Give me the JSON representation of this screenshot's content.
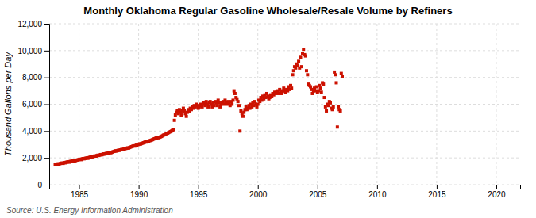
{
  "chart_data": {
    "type": "scatter",
    "title": "Monthly Oklahoma Regular Gasoline Wholesale/Resale Volume by Refiners",
    "y_label": "Thousand Gallons per Day",
    "annotations": [
      "Source: U.S. Energy Information Administration"
    ],
    "color": "#CC1100",
    "marker": "square",
    "grid": true,
    "xlim": [
      1982.5,
      2022
    ],
    "ylim": [
      0,
      12000
    ],
    "xticks": [
      1985,
      1990,
      1995,
      2000,
      2005,
      2010,
      2015,
      2020
    ],
    "yticks": [
      0,
      {
        "value": 2000,
        "label": "2,000"
      },
      {
        "value": 4000,
        "label": "4,000"
      },
      {
        "value": 6000,
        "label": "6,000"
      },
      {
        "value": 8000,
        "label": "8,000"
      },
      {
        "value": 10000,
        "label": "10,000"
      },
      {
        "value": 12000,
        "label": "12,000"
      }
    ],
    "x": [
      1983.0,
      1983.08,
      1983.17,
      1983.25,
      1983.33,
      1983.42,
      1983.5,
      1983.58,
      1983.67,
      1983.75,
      1983.83,
      1983.92,
      1984.0,
      1984.08,
      1984.17,
      1984.25,
      1984.33,
      1984.42,
      1984.5,
      1984.58,
      1984.67,
      1984.75,
      1984.83,
      1984.92,
      1985.0,
      1985.08,
      1985.17,
      1985.25,
      1985.33,
      1985.42,
      1985.5,
      1985.58,
      1985.67,
      1985.75,
      1985.83,
      1985.92,
      1986.0,
      1986.08,
      1986.17,
      1986.25,
      1986.33,
      1986.42,
      1986.5,
      1986.58,
      1986.67,
      1986.75,
      1986.83,
      1986.92,
      1987.0,
      1987.08,
      1987.17,
      1987.25,
      1987.33,
      1987.42,
      1987.5,
      1987.58,
      1987.67,
      1987.75,
      1987.83,
      1987.92,
      1988.0,
      1988.08,
      1988.17,
      1988.25,
      1988.33,
      1988.42,
      1988.5,
      1988.58,
      1988.67,
      1988.75,
      1988.83,
      1988.92,
      1989.0,
      1989.08,
      1989.17,
      1989.25,
      1989.33,
      1989.42,
      1989.5,
      1989.58,
      1989.67,
      1989.75,
      1989.83,
      1989.92,
      1990.0,
      1990.08,
      1990.17,
      1990.25,
      1990.33,
      1990.42,
      1990.5,
      1990.58,
      1990.67,
      1990.75,
      1990.83,
      1990.92,
      1991.0,
      1991.08,
      1991.17,
      1991.25,
      1991.33,
      1991.42,
      1991.5,
      1991.58,
      1991.67,
      1991.75,
      1991.83,
      1991.92,
      1992.0,
      1992.08,
      1992.17,
      1992.25,
      1992.33,
      1992.42,
      1992.5,
      1992.58,
      1992.67,
      1992.75,
      1992.83,
      1992.92,
      1993.0,
      1993.08,
      1993.17,
      1993.25,
      1993.33,
      1993.42,
      1993.5,
      1993.58,
      1993.67,
      1993.75,
      1993.83,
      1993.92,
      1994.0,
      1994.08,
      1994.17,
      1994.25,
      1994.33,
      1994.42,
      1994.5,
      1994.58,
      1994.67,
      1994.75,
      1994.83,
      1994.92,
      1995.0,
      1995.08,
      1995.17,
      1995.25,
      1995.33,
      1995.42,
      1995.5,
      1995.58,
      1995.67,
      1995.75,
      1995.83,
      1995.92,
      1996.0,
      1996.08,
      1996.17,
      1996.25,
      1996.33,
      1996.42,
      1996.5,
      1996.58,
      1996.67,
      1996.75,
      1996.83,
      1996.92,
      1997.0,
      1997.08,
      1997.17,
      1997.25,
      1997.33,
      1997.42,
      1997.5,
      1997.58,
      1997.67,
      1997.75,
      1997.83,
      1997.92,
      1998.0,
      1998.08,
      1998.17,
      1998.25,
      1998.33,
      1998.42,
      1998.5,
      1998.58,
      1998.67,
      1998.75,
      1998.83,
      1998.92,
      1999.0,
      1999.08,
      1999.17,
      1999.25,
      1999.33,
      1999.42,
      1999.5,
      1999.58,
      1999.67,
      1999.75,
      1999.83,
      1999.92,
      2000.0,
      2000.08,
      2000.17,
      2000.25,
      2000.33,
      2000.42,
      2000.5,
      2000.58,
      2000.67,
      2000.75,
      2000.83,
      2000.92,
      2001.0,
      2001.08,
      2001.17,
      2001.25,
      2001.33,
      2001.42,
      2001.5,
      2001.58,
      2001.67,
      2001.75,
      2001.83,
      2001.92,
      2002.0,
      2002.08,
      2002.17,
      2002.25,
      2002.33,
      2002.42,
      2002.5,
      2002.58,
      2002.67,
      2002.75,
      2002.83,
      2002.92,
      2003.0,
      2003.08,
      2003.17,
      2003.25,
      2003.33,
      2003.42,
      2003.5,
      2003.58,
      2003.67,
      2003.75,
      2003.83,
      2003.92,
      2004.0,
      2004.08,
      2004.17,
      2004.25,
      2004.33,
      2004.42,
      2004.5,
      2004.58,
      2004.67,
      2004.75,
      2004.83,
      2004.92,
      2005.0,
      2005.08,
      2005.17,
      2005.25,
      2005.33,
      2005.42,
      2005.5,
      2005.58,
      2005.67,
      2005.75,
      2005.83,
      2005.92,
      2006.0,
      2006.08,
      2006.17,
      2006.25,
      2006.33,
      2006.42,
      2006.5,
      2006.58,
      2006.67,
      2006.75,
      2006.83,
      2006.92,
      2007.0,
      2007.08
    ],
    "values": [
      1480,
      1520,
      1500,
      1560,
      1540,
      1580,
      1600,
      1620,
      1590,
      1650,
      1630,
      1670,
      1690,
      1710,
      1680,
      1730,
      1750,
      1720,
      1770,
      1800,
      1780,
      1820,
      1840,
      1860,
      1880,
      1900,
      1870,
      1920,
      1950,
      1930,
      1960,
      1980,
      2000,
      1970,
      2020,
      2050,
      2070,
      2100,
      2080,
      2120,
      2150,
      2130,
      2170,
      2200,
      2180,
      2220,
      2250,
      2230,
      2270,
      2300,
      2280,
      2320,
      2350,
      2330,
      2370,
      2400,
      2380,
      2420,
      2450,
      2480,
      2500,
      2530,
      2510,
      2550,
      2580,
      2560,
      2600,
      2630,
      2610,
      2650,
      2680,
      2700,
      2720,
      2750,
      2730,
      2780,
      2810,
      2840,
      2870,
      2900,
      2880,
      2920,
      2950,
      2980,
      3010,
      3050,
      3030,
      3080,
      3100,
      3130,
      3160,
      3200,
      3180,
      3220,
      3250,
      3280,
      3300,
      3330,
      3360,
      3400,
      3430,
      3460,
      3490,
      3520,
      3500,
      3540,
      3570,
      3600,
      3650,
      3700,
      3720,
      3760,
      3800,
      3840,
      3880,
      3920,
      3960,
      4000,
      4050,
      4100,
      4800,
      5200,
      5400,
      5500,
      5300,
      5600,
      5400,
      5200,
      5500,
      5700,
      5500,
      5300,
      5100,
      5400,
      5600,
      5500,
      5700,
      5600,
      5800,
      5700,
      5900,
      5800,
      6000,
      5900,
      5700,
      5800,
      6000,
      5900,
      5800,
      6100,
      6000,
      5900,
      6200,
      6000,
      5800,
      6100,
      6200,
      6000,
      5800,
      6100,
      5900,
      6200,
      6100,
      5900,
      6300,
      6100,
      5800,
      6000,
      6100,
      6200,
      6000,
      6300,
      6100,
      6000,
      6200,
      6100,
      5900,
      6200,
      6000,
      6300,
      7000,
      6800,
      6500,
      6400,
      6200,
      5900,
      4000,
      5500,
      5300,
      5100,
      5400,
      5600,
      5800,
      5600,
      5700,
      5900,
      5700,
      6000,
      5800,
      6100,
      5900,
      6200,
      6000,
      5800,
      6000,
      6300,
      6200,
      6500,
      6300,
      6600,
      6400,
      6700,
      6500,
      6800,
      6600,
      6400,
      6500,
      6700,
      6600,
      6800,
      6700,
      6900,
      6800,
      6900,
      7000,
      6800,
      7100,
      6900,
      6800,
      7000,
      7200,
      7000,
      6900,
      7100,
      7000,
      7300,
      7100,
      7400,
      7200,
      8200,
      8500,
      8800,
      8700,
      9000,
      8900,
      9200,
      8700,
      9500,
      8800,
      9800,
      10100,
      9700,
      9600,
      8500,
      8200,
      7500,
      7400,
      7300,
      7100,
      6800,
      7000,
      7200,
      7000,
      7300,
      6900,
      7000,
      7400,
      7200,
      6900,
      7600,
      7500,
      6500,
      5800,
      5500,
      6000,
      5900,
      6200,
      6100,
      5700,
      5600,
      5800,
      8400,
      8200,
      7600,
      4300,
      5800,
      5600,
      5500,
      8300,
      8100
    ]
  }
}
